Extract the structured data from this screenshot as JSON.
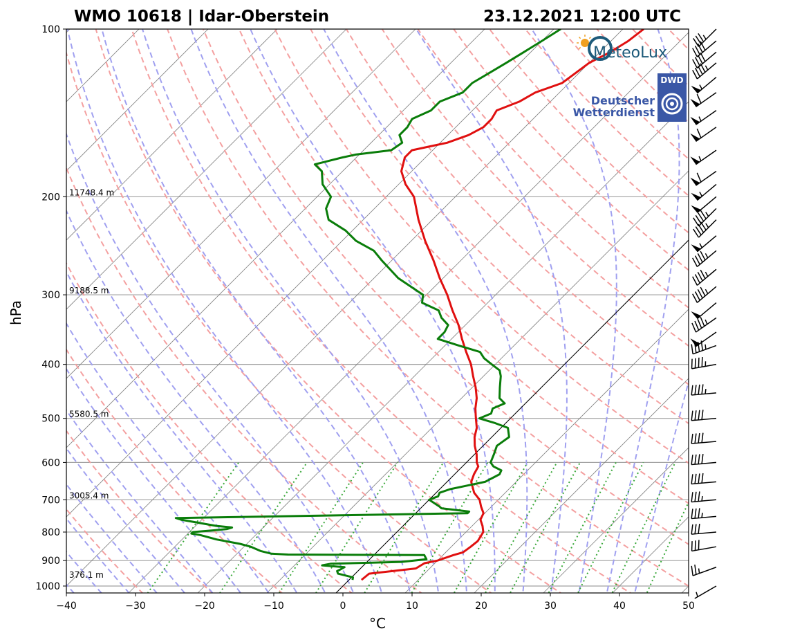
{
  "header": {
    "station_title": "WMO 10618 | Idar-Oberstein",
    "datetime": "23.12.2021 12:00 UTC"
  },
  "logos": {
    "meteolux": "MeteoLux",
    "dwd_badge": "DWD",
    "dwd_line1": "Deutscher",
    "dwd_line2": "Wetterdienst"
  },
  "colors": {
    "temperature": "#e01010",
    "dewpoint": "#0a7d0a",
    "dry_adiabat": "#f4a0a0",
    "moist_adiabat": "#a0a0f0",
    "mixing_ratio": "#3aa83a",
    "isotherm": "#808080",
    "isobar": "#a0a0a0"
  },
  "chart_data": {
    "type": "line",
    "subtype": "skew-T log-p",
    "xlabel": "°C",
    "ylabel": "hPa",
    "xlim": [
      -40,
      50
    ],
    "ylim": [
      1050,
      100
    ],
    "x_ticks": [
      -40,
      -30,
      -20,
      -10,
      0,
      10,
      20,
      30,
      40,
      50
    ],
    "x_tick_labels": [
      "−40",
      "−30",
      "−20",
      "−10",
      "0",
      "10",
      "20",
      "30",
      "40",
      "50"
    ],
    "y_ticks": [
      1000,
      900,
      800,
      700,
      600,
      500,
      400,
      300,
      200,
      100
    ],
    "y_tick_labels": [
      "1000",
      "900",
      "800",
      "700",
      "600",
      "500",
      "400",
      "300",
      "200",
      "100"
    ],
    "height_labels": [
      {
        "p": 1000,
        "text": "376.1 m"
      },
      {
        "p": 700,
        "text": "3005.4 m"
      },
      {
        "p": 500,
        "text": "5580.5 m"
      },
      {
        "p": 300,
        "text": "9188.5 m"
      },
      {
        "p": 200,
        "text": "11748.4 m"
      }
    ],
    "series": [
      {
        "key": "temperature",
        "p": [
          975,
          950,
          930,
          910,
          900,
          880,
          870,
          850,
          830,
          800,
          780,
          760,
          740,
          720,
          700,
          680,
          650,
          630,
          610,
          600,
          580,
          560,
          540,
          520,
          500,
          480,
          460,
          440,
          420,
          400,
          380,
          360,
          340,
          320,
          300,
          280,
          260,
          240,
          220,
          200,
          190,
          180,
          170,
          165,
          160,
          155,
          150,
          145,
          140,
          135,
          130,
          125,
          120,
          115,
          110,
          105,
          100
        ],
        "t": [
          1.8,
          2.0,
          8.0,
          8.5,
          10.0,
          11.5,
          12.5,
          12.8,
          13.0,
          12.5,
          11.5,
          10.3,
          9.8,
          8.5,
          7.3,
          5.5,
          3.5,
          2.8,
          2.3,
          1.5,
          0.3,
          -1.2,
          -2.5,
          -3.5,
          -5.0,
          -6.5,
          -7.8,
          -9.5,
          -11.5,
          -13.5,
          -16.0,
          -18.5,
          -21.0,
          -24.0,
          -27.0,
          -30.5,
          -34.0,
          -38.0,
          -42.0,
          -46.0,
          -49.0,
          -51.5,
          -53.0,
          -53.0,
          -49.0,
          -47.0,
          -46.0,
          -46.0,
          -46.5,
          -44.5,
          -43.5,
          -41.0,
          -40.5,
          -40.0,
          -38.5,
          -37.5,
          -37.0
        ]
      },
      {
        "key": "dewpoint",
        "p": [
          975,
          965,
          950,
          940,
          935,
          925,
          918,
          912,
          905,
          895,
          880,
          878,
          875,
          865,
          850,
          840,
          825,
          810,
          805,
          800,
          795,
          790,
          785,
          780,
          775,
          770,
          760,
          755,
          740,
          735,
          725,
          720,
          700,
          690,
          680,
          670,
          660,
          650,
          640,
          630,
          620,
          610,
          600,
          580,
          560,
          540,
          520,
          510,
          500,
          490,
          480,
          470,
          460,
          440,
          420,
          410,
          400,
          390,
          380,
          370,
          360,
          350,
          340,
          330,
          320,
          310,
          300,
          280,
          260,
          250,
          240,
          230,
          220,
          210,
          200,
          190,
          180,
          175,
          170,
          168,
          165,
          160,
          155,
          150,
          145,
          140,
          135,
          130,
          125,
          120,
          115,
          110,
          105,
          100
        ],
        "t": [
          0.5,
          0.2,
          -2.5,
          -3.0,
          -2.8,
          -2.5,
          -6.0,
          -5.0,
          5.0,
          8.2,
          7.3,
          -12.5,
          -15.0,
          -17.0,
          -19.0,
          -21.0,
          -25.0,
          -28.0,
          -29.5,
          -29.5,
          -27.0,
          -25.0,
          -24.5,
          -27.0,
          -28.5,
          -30.0,
          -33.0,
          -34.0,
          7.5,
          7.5,
          3.0,
          2.5,
          0.0,
          0.8,
          0.5,
          1.5,
          3.5,
          5.5,
          6.0,
          6.5,
          6.2,
          4.5,
          3.5,
          2.8,
          2.0,
          2.5,
          1.0,
          -1.5,
          -4.5,
          -3.5,
          -4.0,
          -3.0,
          -4.5,
          -6.0,
          -7.5,
          -8.5,
          -10.5,
          -12.5,
          -14.0,
          -18.0,
          -22.0,
          -22.0,
          -22.5,
          -24.5,
          -26.0,
          -29.5,
          -30.5,
          -36.5,
          -41.5,
          -44.0,
          -48.0,
          -51.0,
          -55.0,
          -57.0,
          -58.0,
          -61.0,
          -63.0,
          -65.0,
          -62.0,
          -60.5,
          -56.0,
          -55.5,
          -57.0,
          -57.0,
          -57.5,
          -56.0,
          -56.0,
          -54.0,
          -54.0,
          -53.0,
          -52.0,
          -51.0,
          -50.0,
          -49.0
        ]
      }
    ],
    "wind_barbs": [
      {
        "p": 1000,
        "speed_kt": 5,
        "dir": 240
      },
      {
        "p": 925,
        "speed_kt": 25,
        "dir": 250
      },
      {
        "p": 850,
        "speed_kt": 30,
        "dir": 260
      },
      {
        "p": 800,
        "speed_kt": 30,
        "dir": 265
      },
      {
        "p": 750,
        "speed_kt": 35,
        "dir": 265
      },
      {
        "p": 700,
        "speed_kt": 35,
        "dir": 265
      },
      {
        "p": 650,
        "speed_kt": 40,
        "dir": 265
      },
      {
        "p": 600,
        "speed_kt": 40,
        "dir": 265
      },
      {
        "p": 550,
        "speed_kt": 40,
        "dir": 265
      },
      {
        "p": 500,
        "speed_kt": 40,
        "dir": 265
      },
      {
        "p": 450,
        "speed_kt": 45,
        "dir": 265
      },
      {
        "p": 400,
        "speed_kt": 45,
        "dir": 260
      },
      {
        "p": 370,
        "speed_kt": 45,
        "dir": 250
      },
      {
        "p": 350,
        "speed_kt": 50,
        "dir": 235
      },
      {
        "p": 330,
        "speed_kt": 45,
        "dir": 235
      },
      {
        "p": 310,
        "speed_kt": 50,
        "dir": 230
      },
      {
        "p": 290,
        "speed_kt": 45,
        "dir": 230
      },
      {
        "p": 270,
        "speed_kt": 45,
        "dir": 230
      },
      {
        "p": 250,
        "speed_kt": 45,
        "dir": 230
      },
      {
        "p": 235,
        "speed_kt": 55,
        "dir": 230
      },
      {
        "p": 220,
        "speed_kt": 45,
        "dir": 225
      },
      {
        "p": 210,
        "speed_kt": 45,
        "dir": 225
      },
      {
        "p": 200,
        "speed_kt": 50,
        "dir": 230
      },
      {
        "p": 190,
        "speed_kt": 55,
        "dir": 230
      },
      {
        "p": 180,
        "speed_kt": 60,
        "dir": 235
      },
      {
        "p": 165,
        "speed_kt": 55,
        "dir": 235
      },
      {
        "p": 150,
        "speed_kt": 60,
        "dir": 235
      },
      {
        "p": 140,
        "speed_kt": 55,
        "dir": 235
      },
      {
        "p": 130,
        "speed_kt": 60,
        "dir": 235
      },
      {
        "p": 122,
        "speed_kt": 55,
        "dir": 230
      },
      {
        "p": 115,
        "speed_kt": 45,
        "dir": 230
      },
      {
        "p": 110,
        "speed_kt": 40,
        "dir": 230
      },
      {
        "p": 105,
        "speed_kt": 40,
        "dir": 230
      },
      {
        "p": 100,
        "speed_kt": 35,
        "dir": 225
      }
    ],
    "grid": true,
    "legend": "none"
  }
}
